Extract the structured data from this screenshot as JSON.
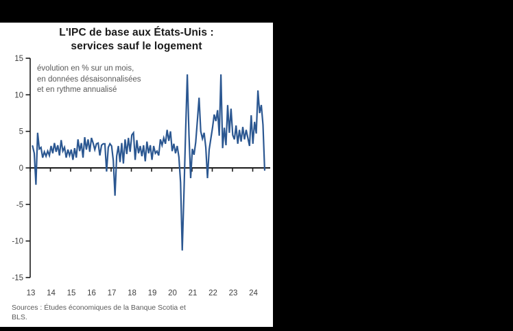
{
  "background_color": "#000000",
  "panel": {
    "title_line1": "L'IPC de base aux États-Unis :",
    "title_line2": "services sauf le logement",
    "subtitle_line1": "évolution en % sur un mois,",
    "subtitle_line2": "en données désaisonnalisées",
    "subtitle_line3": "et en rythme annualisé",
    "source_line1": "Sources : Études économiques de la Banque Scotia et",
    "source_line2": "BLS."
  },
  "chart_data": {
    "type": "line",
    "title": "L'IPC de base aux États-Unis : services sauf le logement",
    "subtitle": "évolution en % sur un mois, en données désaisonnalisées et en rythme annualisé",
    "source": "Sources : Études économiques de la Banque Scotia et BLS.",
    "xlabel": "",
    "ylabel": "",
    "ylim": [
      -15,
      15
    ],
    "ytick_step": 5,
    "yticks": [
      15,
      10,
      5,
      0,
      -5,
      -10,
      -15
    ],
    "xticks": [
      "13",
      "14",
      "15",
      "16",
      "17",
      "18",
      "19",
      "20",
      "21",
      "22",
      "23",
      "24"
    ],
    "frequency": "monthly",
    "x_start": "2013-01",
    "x_end": "2024-07",
    "grid": false,
    "legend": "none",
    "line_color": "#2b5791",
    "axis_color": "#1a1a1a",
    "tick_label_color": "#3f3f3f",
    "series": [
      {
        "name": "IPC de base É.-U. : services sauf le logement (% m/m annualisé, désais.)",
        "values_by_year": {
          "2013": [
            3.0,
            2.0,
            -2.3,
            4.8,
            2.6,
            2.8,
            1.4,
            2.2,
            1.6,
            2.3,
            1.7,
            3.0
          ],
          "2014": [
            2.0,
            3.4,
            2.2,
            3.1,
            1.7,
            3.8,
            2.3,
            2.8,
            1.4,
            2.5,
            1.7,
            2.5
          ],
          "2015": [
            1.1,
            2.7,
            1.4,
            3.9,
            2.3,
            3.4,
            1.4,
            4.2,
            2.5,
            3.9,
            2.2,
            4.1
          ],
          "2016": [
            3.4,
            2.5,
            3.3,
            3.4,
            1.7,
            3.1,
            3.3,
            3.3,
            -0.5,
            2.8,
            3.3,
            3.0
          ],
          "2017": [
            1.0,
            -3.8,
            1.6,
            3.0,
            0.8,
            3.4,
            0.6,
            3.9,
            1.9,
            4.1,
            2.2,
            4.5
          ],
          "2018": [
            4.8,
            1.1,
            3.8,
            2.0,
            3.0,
            1.6,
            3.1,
            0.9,
            3.6,
            2.0,
            3.1,
            1.1
          ],
          "2019": [
            3.0,
            2.0,
            2.3,
            1.7,
            3.9,
            3.1,
            4.1,
            3.3,
            5.2,
            3.7,
            5.0,
            2.3
          ],
          "2020": [
            3.3,
            2.0,
            3.0,
            1.5,
            -2.0,
            -11.3,
            -3.5,
            5.0,
            12.8,
            4.5,
            -1.4,
            2.6
          ],
          "2021": [
            1.8,
            3.5,
            6.5,
            9.6,
            5.0,
            4.0,
            4.8,
            2.8,
            -1.4,
            2.5,
            4.0,
            5.5
          ],
          "2022": [
            7.3,
            6.4,
            7.9,
            4.4,
            12.8,
            2.7,
            5.5,
            3.1,
            8.6,
            4.8,
            8.1,
            4.5
          ],
          "2023": [
            3.9,
            5.8,
            3.3,
            5.2,
            3.6,
            5.6,
            3.9,
            5.2,
            4.1,
            3.0,
            7.2,
            3.3
          ],
          "2024": [
            6.3,
            4.7,
            10.6,
            7.5,
            8.6,
            5.9,
            -0.3
          ]
        }
      }
    ]
  }
}
